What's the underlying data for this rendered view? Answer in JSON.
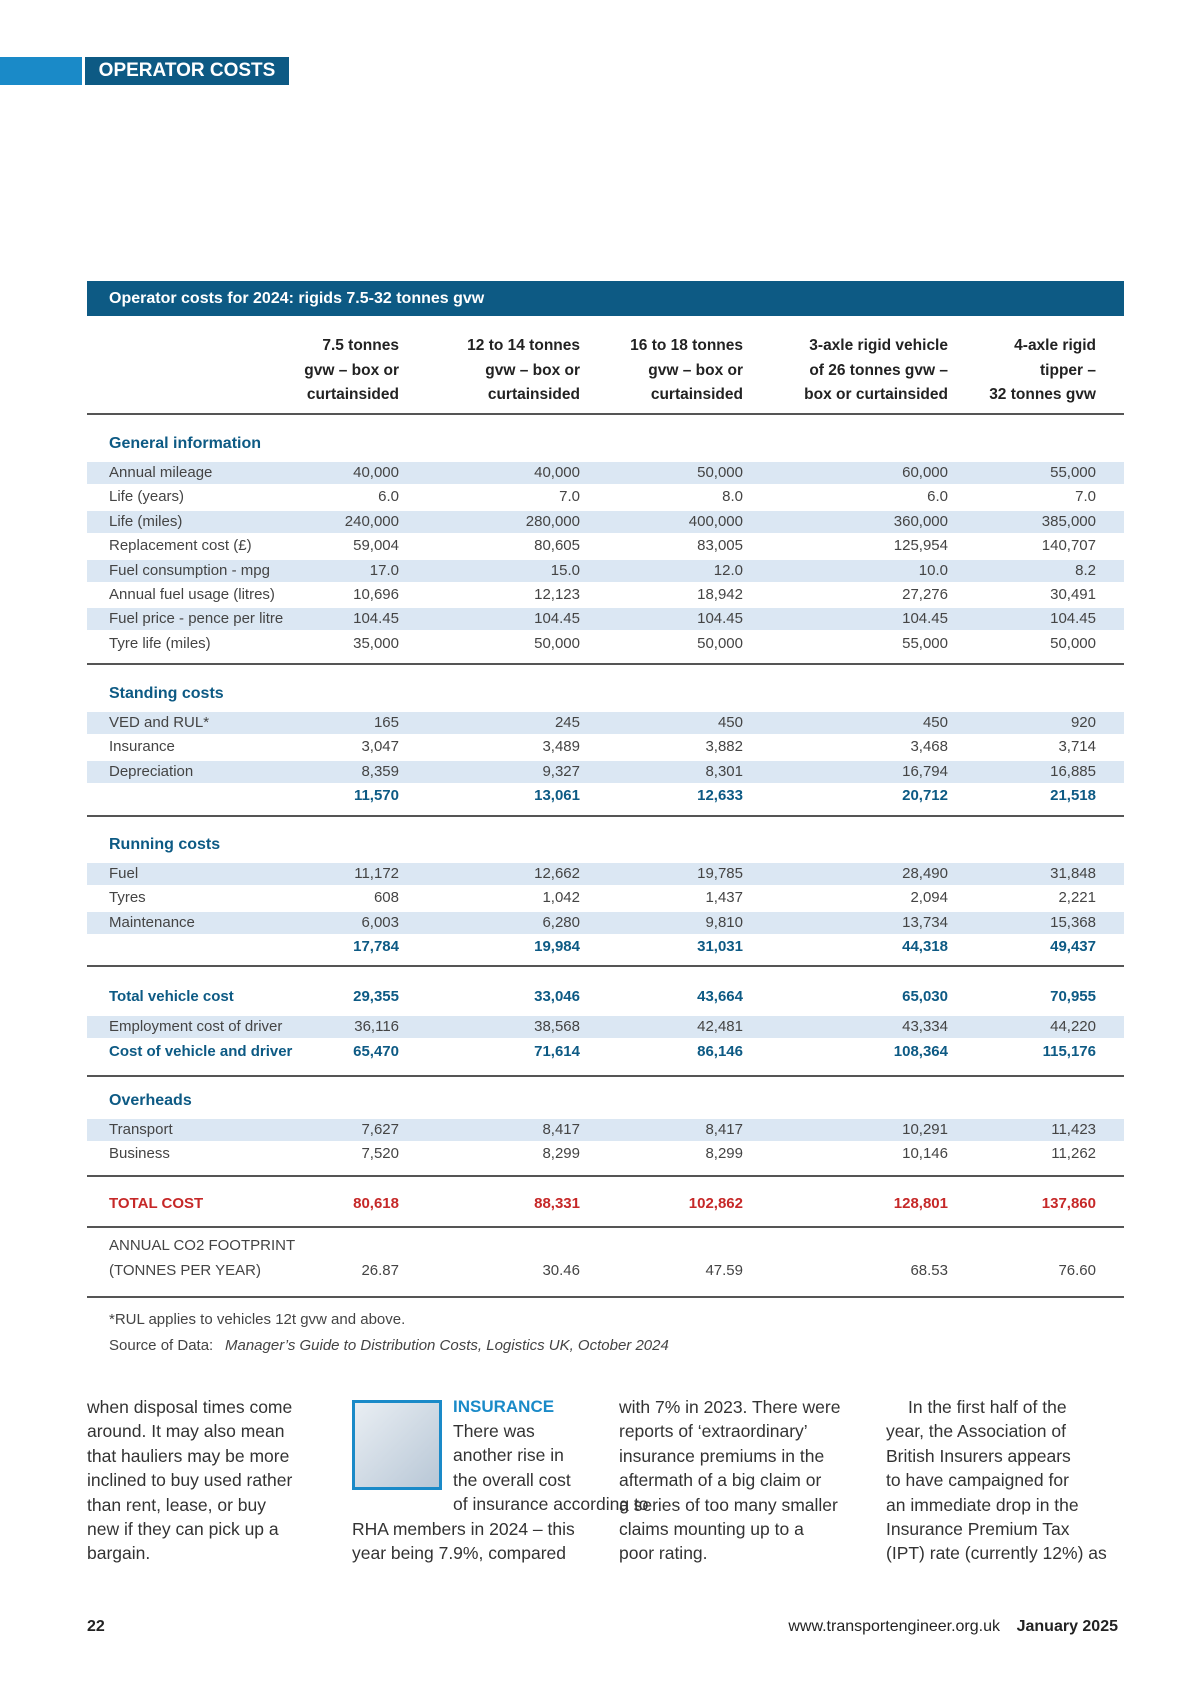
{
  "header": {
    "section": "OPERATOR COSTS"
  },
  "table": {
    "title": "Operator costs for 2024: rigids 7.5-32 tonnes gvw",
    "columns": [
      [
        "7.5 tonnes",
        "gvw – box or",
        "curtainsided"
      ],
      [
        "12 to 14 tonnes",
        "gvw – box or",
        "curtainsided"
      ],
      [
        "16 to 18 tonnes",
        "gvw – box or",
        "curtainsided"
      ],
      [
        "3-axle rigid vehicle",
        "of 26 tonnes gvw –",
        "box or curtainsided"
      ],
      [
        "4-axle rigid",
        "tipper –",
        "32 tonnes gvw"
      ]
    ],
    "general": {
      "heading": "General information",
      "rows": [
        {
          "label": "Annual mileage",
          "values": [
            "40,000",
            "40,000",
            "50,000",
            "60,000",
            "55,000"
          ]
        },
        {
          "label": "Life (years)",
          "values": [
            "6.0",
            "7.0",
            "8.0",
            "6.0",
            "7.0"
          ]
        },
        {
          "label": "Life (miles)",
          "values": [
            "240,000",
            "280,000",
            "400,000",
            "360,000",
            "385,000"
          ]
        },
        {
          "label": "Replacement cost (£)",
          "values": [
            "59,004",
            "80,605",
            "83,005",
            "125,954",
            "140,707"
          ]
        },
        {
          "label": "Fuel consumption - mpg",
          "values": [
            "17.0",
            "15.0",
            "12.0",
            "10.0",
            "8.2"
          ]
        },
        {
          "label": "Annual fuel usage (litres)",
          "values": [
            "10,696",
            "12,123",
            "18,942",
            "27,276",
            "30,491"
          ]
        },
        {
          "label": "Fuel price - pence per litre",
          "values": [
            "104.45",
            "104.45",
            "104.45",
            "104.45",
            "104.45"
          ]
        },
        {
          "label": "Tyre life (miles)",
          "values": [
            "35,000",
            "50,000",
            "50,000",
            "55,000",
            "50,000"
          ]
        }
      ]
    },
    "standing": {
      "heading": "Standing costs",
      "rows": [
        {
          "label": "VED and RUL*",
          "values": [
            "165",
            "245",
            "450",
            "450",
            "920"
          ]
        },
        {
          "label": "Insurance",
          "values": [
            "3,047",
            "3,489",
            "3,882",
            "3,468",
            "3,714"
          ]
        },
        {
          "label": "Depreciation",
          "values": [
            "8,359",
            "9,327",
            "8,301",
            "16,794",
            "16,885"
          ]
        }
      ],
      "subtotal": [
        "11,570",
        "13,061",
        "12,633",
        "20,712",
        "21,518"
      ]
    },
    "running": {
      "heading": "Running costs",
      "rows": [
        {
          "label": "Fuel",
          "values": [
            "11,172",
            "12,662",
            "19,785",
            "28,490",
            "31,848"
          ]
        },
        {
          "label": "Tyres",
          "values": [
            "608",
            "1,042",
            "1,437",
            "2,094",
            "2,221"
          ]
        },
        {
          "label": "Maintenance",
          "values": [
            "6,003",
            "6,280",
            "9,810",
            "13,734",
            "15,368"
          ]
        }
      ],
      "subtotal": [
        "17,784",
        "19,984",
        "31,031",
        "44,318",
        "49,437"
      ]
    },
    "total_vehicle": {
      "label": "Total vehicle cost",
      "values": [
        "29,355",
        "33,046",
        "43,664",
        "65,030",
        "70,955"
      ]
    },
    "employment": {
      "label": "Employment cost of driver",
      "values": [
        "36,116",
        "38,568",
        "42,481",
        "43,334",
        "44,220"
      ]
    },
    "vehicle_driver": {
      "label": "Cost of vehicle and driver",
      "values": [
        "65,470",
        "71,614",
        "86,146",
        "108,364",
        "115,176"
      ]
    },
    "overheads": {
      "heading": "Overheads",
      "rows": [
        {
          "label": "Transport",
          "values": [
            "7,627",
            "8,417",
            "8,417",
            "10,291",
            "11,423"
          ]
        },
        {
          "label": "Business",
          "values": [
            "7,520",
            "8,299",
            "8,299",
            "10,146",
            "11,262"
          ]
        }
      ]
    },
    "total_cost": {
      "label": "TOTAL COST",
      "values": [
        "80,618",
        "88,331",
        "102,862",
        "128,801",
        "137,860"
      ]
    },
    "co2": {
      "label": [
        "ANNUAL CO2 FOOTPRINT",
        "(TONNES PER YEAR)"
      ],
      "values": [
        "26.87",
        "30.46",
        "47.59",
        "68.53",
        "76.60"
      ]
    },
    "footnote": "*RUL applies to vehicles 12t gvw and above.",
    "source": {
      "prefix": "Source of Data:",
      "text": "Manager’s Guide to Distribution Costs, Logistics UK, October 2024"
    }
  },
  "article": {
    "col1": [
      "when disposal times come",
      "around. It may also mean",
      "that hauliers may be more",
      "inclined to buy used rather",
      "than rent, lease, or buy",
      "new if they can pick up a",
      "bargain."
    ],
    "col2_heading": "INSURANCE",
    "col2": [
      "There was",
      "another rise in",
      "the overall cost",
      "of insurance according to",
      "RHA members in 2024 – this",
      "year being 7.9%, compared"
    ],
    "col3": [
      "with 7% in 2023. There were",
      "reports of ‘extraordinary’",
      "insurance premiums in the",
      "aftermath of a big claim or",
      "a series of too many smaller",
      "claims mounting up to a",
      "poor rating."
    ],
    "col4": [
      "In the first half of the",
      "year, the Association of",
      "British Insurers appears",
      "to have campaigned for",
      "an immediate drop in the",
      "Insurance Premium Tax",
      "(IPT) rate (currently 12%) as"
    ]
  },
  "footer": {
    "page": "22",
    "url": "www.transportengineer.org.uk",
    "date": "January 2025"
  }
}
